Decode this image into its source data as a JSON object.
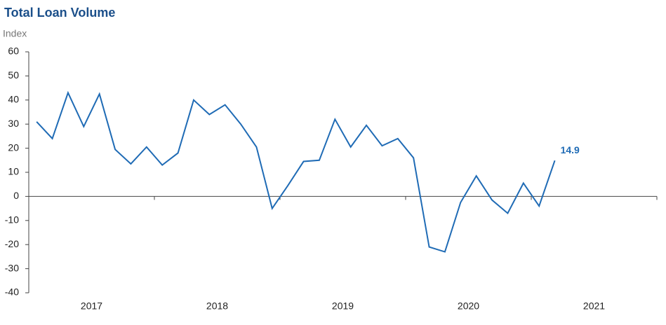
{
  "chart_data": {
    "type": "line",
    "title": "Total Loan Volume",
    "y_label": "Index",
    "x": [
      2017.0625,
      2017.1875,
      2017.3125,
      2017.4375,
      2017.5625,
      2017.6875,
      2017.8125,
      2017.9375,
      2018.0625,
      2018.1875,
      2018.3125,
      2018.4375,
      2018.5625,
      2018.6875,
      2018.8125,
      2018.9375,
      2019.0625,
      2019.1875,
      2019.3125,
      2019.4375,
      2019.5625,
      2019.6875,
      2019.8125,
      2019.9375,
      2020.0625,
      2020.1875,
      2020.3125,
      2020.4375,
      2020.5625,
      2020.6875,
      2020.8125,
      2020.9375,
      2021.0625,
      2021.1875
    ],
    "series": [
      {
        "name": "Total Loan Volume",
        "color": "#1f6bb5",
        "values": [
          31,
          24,
          43,
          29,
          42.5,
          19.5,
          13.5,
          20.5,
          13,
          18,
          40,
          34,
          38,
          30,
          20.5,
          -5,
          4.5,
          14.5,
          15,
          32,
          20.5,
          29.5,
          21,
          24,
          16,
          -21,
          -23,
          -2.5,
          8.5,
          -1.5,
          -7,
          5.5,
          -4,
          14.9
        ]
      }
    ],
    "xlim": [
      2017,
      2022
    ],
    "xticks": [
      {
        "value": 2017.5,
        "label": "2017"
      },
      {
        "value": 2018.5,
        "label": "2018"
      },
      {
        "value": 2019.5,
        "label": "2019"
      },
      {
        "value": 2020.5,
        "label": "2020"
      },
      {
        "value": 2021.5,
        "label": "2021"
      }
    ],
    "ylim": [
      -40,
      60
    ],
    "yticks": [
      -40,
      -30,
      -20,
      -10,
      0,
      10,
      20,
      30,
      40,
      50,
      60
    ],
    "grid": false
  }
}
